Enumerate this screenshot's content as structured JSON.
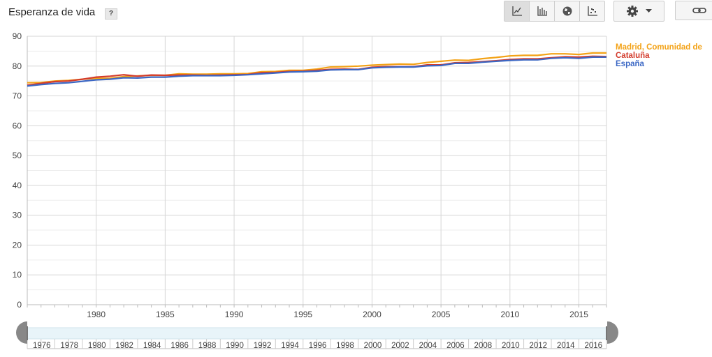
{
  "page": {
    "title": "Esperanza de vida",
    "help_label": "?"
  },
  "toolbar": {
    "icons": [
      "line-chart-icon",
      "bar-chart-icon",
      "globe-icon",
      "scatter-icon"
    ],
    "settings_icon": "gear-icon",
    "link_icon": "link-icon"
  },
  "chart_data": {
    "type": "line",
    "title": "Esperanza de vida",
    "xlabel": "",
    "ylabel": "",
    "ylim": [
      0,
      90
    ],
    "xlim": [
      1975,
      2017
    ],
    "y_ticks": [
      0,
      10,
      20,
      30,
      40,
      50,
      60,
      70,
      80,
      90
    ],
    "x_ticks": [
      1980,
      1985,
      1990,
      1995,
      2000,
      2005,
      2010,
      2015
    ],
    "navigator_ticks": [
      1976,
      1978,
      1980,
      1982,
      1984,
      1986,
      1988,
      1990,
      1992,
      1994,
      1996,
      1998,
      2000,
      2002,
      2004,
      2006,
      2008,
      2010,
      2012,
      2014,
      2016
    ],
    "grid": true,
    "legend_position": "right",
    "x": [
      1975,
      1976,
      1977,
      1978,
      1979,
      1980,
      1981,
      1982,
      1983,
      1984,
      1985,
      1986,
      1987,
      1988,
      1989,
      1990,
      1991,
      1992,
      1993,
      1994,
      1995,
      1996,
      1997,
      1998,
      1999,
      2000,
      2001,
      2002,
      2003,
      2004,
      2005,
      2006,
      2007,
      2008,
      2009,
      2010,
      2011,
      2012,
      2013,
      2014,
      2015,
      2016,
      2017
    ],
    "series": [
      {
        "name": "Madrid, Comunidad de",
        "color": "#f3a216",
        "values": [
          74.4,
          74.5,
          75.0,
          75.2,
          75.6,
          75.9,
          75.9,
          76.5,
          76.7,
          76.9,
          76.9,
          77.4,
          77.3,
          77.3,
          77.4,
          77.4,
          77.5,
          78.1,
          78.2,
          78.6,
          78.6,
          79.0,
          79.7,
          79.8,
          80.0,
          80.3,
          80.5,
          80.7,
          80.6,
          81.2,
          81.6,
          82.0,
          81.9,
          82.5,
          82.9,
          83.4,
          83.6,
          83.6,
          84.1,
          84.1,
          83.9,
          84.4,
          84.4
        ]
      },
      {
        "name": "Cataluña",
        "color": "#d33b2c",
        "values": [
          73.6,
          74.2,
          74.8,
          75.0,
          75.6,
          76.3,
          76.6,
          77.1,
          76.6,
          77.0,
          76.9,
          77.0,
          77.0,
          76.9,
          77.0,
          77.1,
          77.2,
          77.8,
          77.9,
          78.2,
          78.3,
          78.6,
          78.9,
          79.0,
          78.9,
          79.6,
          79.8,
          79.8,
          79.8,
          80.4,
          80.4,
          81.1,
          81.2,
          81.5,
          81.8,
          82.2,
          82.4,
          82.4,
          82.8,
          83.1,
          83.0,
          83.3,
          83.2
        ]
      },
      {
        "name": "España",
        "color": "#3b67c4",
        "values": [
          73.3,
          73.8,
          74.2,
          74.4,
          74.9,
          75.4,
          75.6,
          76.1,
          76.0,
          76.3,
          76.3,
          76.6,
          76.8,
          76.8,
          76.8,
          76.9,
          77.1,
          77.4,
          77.7,
          78.0,
          78.1,
          78.3,
          78.7,
          78.8,
          78.8,
          79.4,
          79.6,
          79.7,
          79.7,
          80.1,
          80.2,
          80.9,
          80.9,
          81.3,
          81.6,
          81.9,
          82.1,
          82.1,
          82.6,
          82.8,
          82.6,
          83.0,
          83.0
        ]
      }
    ]
  }
}
